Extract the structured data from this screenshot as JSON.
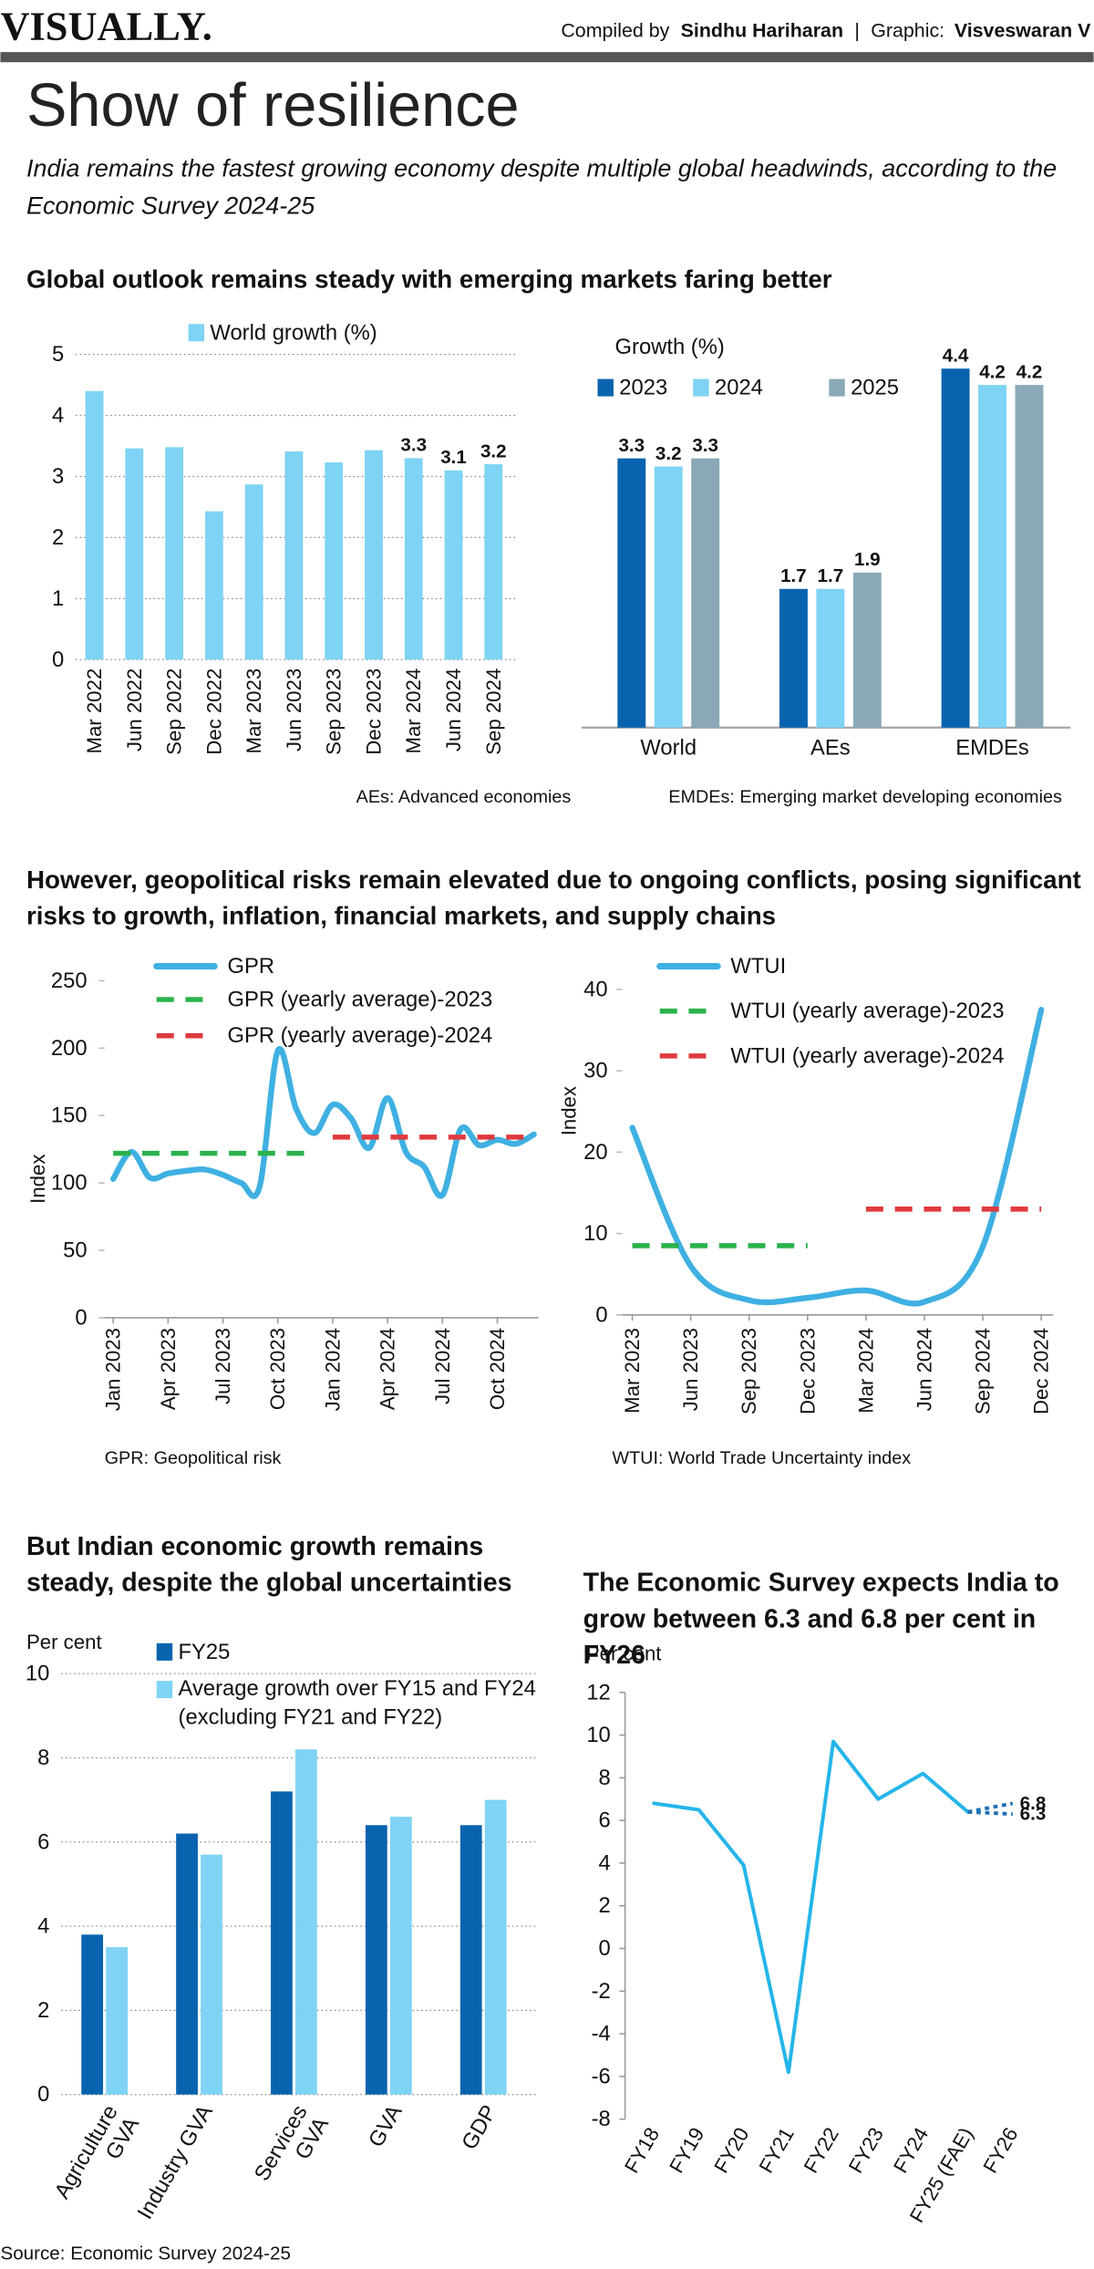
{
  "header": {
    "brand": "VISUALLY.",
    "compiled_by_label": "Compiled by",
    "compiled_by": "Sindhu Hariharan",
    "separator": "|",
    "graphic_label": "Graphic:",
    "graphic_by": "Visveswaran V"
  },
  "title": "Show of resilience",
  "subtitle": "India remains the fastest growing economy despite multiple global headwinds, according to the Economic Survey 2024-25",
  "sections": [
    "Global outlook remains steady with emerging markets faring better",
    "However, geopolitical risks remain elevated due to ongoing conflicts, posing significant risks to growth, inflation, financial markets, and supply chains"
  ],
  "source": "Source: Economic Survey 2024-25",
  "chart_data": [
    {
      "type": "bar",
      "categories": [
        "Mar 2022",
        "Jun 2022",
        "Sep 2022",
        "Dec 2022",
        "Mar 2023",
        "Jun 2023",
        "Sep 2023",
        "Dec 2023",
        "Mar 2024",
        "Jun 2024",
        "Sep 2024"
      ],
      "series": [
        {
          "name": "World growth (%)",
          "color": "#7fd3f5",
          "values": [
            4.4,
            3.46,
            3.48,
            2.43,
            2.87,
            3.41,
            3.23,
            3.43,
            3.3,
            3.1,
            3.2
          ],
          "value_labels": [
            null,
            null,
            null,
            null,
            null,
            null,
            null,
            null,
            "3.3",
            "3.1",
            "3.2"
          ]
        }
      ],
      "ylim": [
        0,
        5
      ],
      "yticks": [
        0,
        1,
        2,
        3,
        4,
        5
      ],
      "grid": true
    },
    {
      "type": "bar",
      "legend_title": "Growth (%)",
      "data_labels": true,
      "categories": [
        "World",
        "AEs",
        "EMDEs"
      ],
      "series": [
        {
          "name": "2023",
          "color": "#0a63ae",
          "values": [
            3.3,
            1.7,
            4.4
          ]
        },
        {
          "name": "2024",
          "color": "#7fd3f5",
          "values": [
            3.2,
            1.7,
            4.2
          ]
        },
        {
          "name": "2025",
          "color": "#8aa8b8",
          "values": [
            3.3,
            1.9,
            4.2
          ]
        }
      ],
      "notes": [
        "AEs: Advanced economies",
        "EMDEs: Emerging market developing economies"
      ]
    },
    {
      "type": "line",
      "ylabel": "Index",
      "note": "GPR: Geopolitical risk",
      "categories": [
        "Jan 2023",
        null,
        null,
        "Apr 2023",
        null,
        null,
        "Jul 2023",
        null,
        null,
        "Oct 2023",
        null,
        null,
        "Jan 2024",
        null,
        null,
        "Apr 2024",
        null,
        null,
        "Jul 2024",
        null,
        null,
        "Oct 2024",
        null,
        null
      ],
      "series": [
        {
          "name": "GPR",
          "color": "#3fb0e2",
          "smooth": true,
          "values": [
            103,
            123,
            104,
            107,
            109,
            110,
            106,
            100,
            97,
            198,
            155,
            137,
            158,
            148,
            126,
            163,
            123,
            112,
            91,
            140,
            128,
            132,
            129,
            136
          ]
        },
        {
          "name": "GPR (yearly average)-2023",
          "color": "#2bb24c",
          "dash": "dashed",
          "values": [
            122,
            122,
            122,
            122,
            122,
            122,
            122,
            122,
            122,
            122,
            122,
            122,
            null,
            null,
            null,
            null,
            null,
            null,
            null,
            null,
            null,
            null,
            null,
            null
          ]
        },
        {
          "name": "GPR (yearly average)-2024",
          "color": "#e03a3e",
          "dash": "dashed",
          "values": [
            null,
            null,
            null,
            null,
            null,
            null,
            null,
            null,
            null,
            null,
            null,
            null,
            134,
            134,
            134,
            134,
            134,
            134,
            134,
            134,
            134,
            134,
            134,
            134
          ]
        }
      ],
      "ylim": [
        0,
        250
      ],
      "yticks": [
        0,
        50,
        100,
        150,
        200,
        250
      ],
      "grid": false
    },
    {
      "type": "line",
      "ylabel": "Index",
      "note": "WTUI: World Trade Uncertainty index",
      "categories": [
        "Mar 2023",
        "Jun 2023",
        "Sep 2023",
        "Dec 2023",
        "Mar 2024",
        "Jun 2024",
        "Sep 2024",
        "Dec 2024"
      ],
      "series": [
        {
          "name": "WTUI",
          "color": "#3fb0e2",
          "smooth": true,
          "values": [
            23,
            6,
            1.8,
            2.1,
            3,
            1.6,
            8.4,
            37.5
          ]
        },
        {
          "name": "WTUI (yearly average)-2023",
          "color": "#2bb24c",
          "dash": "dashed",
          "values": [
            8.5,
            8.5,
            8.5,
            8.5,
            null,
            null,
            null,
            null
          ]
        },
        {
          "name": "WTUI (yearly average)-2024",
          "color": "#e03a3e",
          "dash": "dashed",
          "values": [
            null,
            null,
            null,
            null,
            13,
            13,
            13,
            13
          ]
        }
      ],
      "ylim": [
        0,
        40
      ],
      "yticks": [
        0,
        10,
        20,
        30,
        40
      ],
      "grid": false
    },
    {
      "type": "bar",
      "title": "But Indian economic growth remains steady, despite the global uncertainties",
      "ylabel": "Per cent",
      "categories": [
        "Agriculture GVA",
        "Industry GVA",
        "Services GVA",
        "GVA",
        "GDP"
      ],
      "series": [
        {
          "name": "FY25",
          "color": "#0a63ae",
          "values": [
            3.8,
            6.2,
            7.2,
            6.4,
            6.4
          ]
        },
        {
          "name": "Average growth over FY15 and FY24 (excluding FY21 and FY22)",
          "color": "#7fd3f5",
          "values": [
            3.5,
            5.7,
            8.2,
            6.6,
            7.0
          ]
        }
      ],
      "ylim": [
        0,
        10
      ],
      "yticks": [
        0,
        2,
        4,
        6,
        8,
        10
      ],
      "grid": true
    },
    {
      "type": "line",
      "title": "The Economic Survey expects India to grow between 6.3 and 6.8 per cent in FY26",
      "ylabel": "Per cent",
      "categories": [
        "FY18",
        "FY19",
        "FY20",
        "FY21",
        "FY22",
        "FY23",
        "FY24",
        "FY25 (FAE)",
        "FY26"
      ],
      "series": [
        {
          "color": "#25b5e9",
          "values": [
            6.8,
            6.5,
            3.9,
            -5.8,
            9.7,
            7.0,
            8.2,
            6.4,
            null
          ]
        },
        {
          "color": "#1f6fb5",
          "dash": "dotted",
          "values": [
            null,
            null,
            null,
            null,
            null,
            null,
            null,
            6.4,
            6.8
          ],
          "value_labels": [
            null,
            null,
            null,
            null,
            null,
            null,
            null,
            null,
            "6.8"
          ]
        },
        {
          "color": "#1f6fb5",
          "dash": "dotted",
          "values": [
            null,
            null,
            null,
            null,
            null,
            null,
            null,
            6.4,
            6.3
          ],
          "value_labels": [
            null,
            null,
            null,
            null,
            null,
            null,
            null,
            null,
            "6.3"
          ]
        }
      ],
      "ylim": [
        -8,
        12
      ],
      "yticks": [
        -8,
        -6,
        -4,
        -2,
        0,
        2,
        4,
        6,
        8,
        10,
        12
      ],
      "grid": false
    }
  ]
}
